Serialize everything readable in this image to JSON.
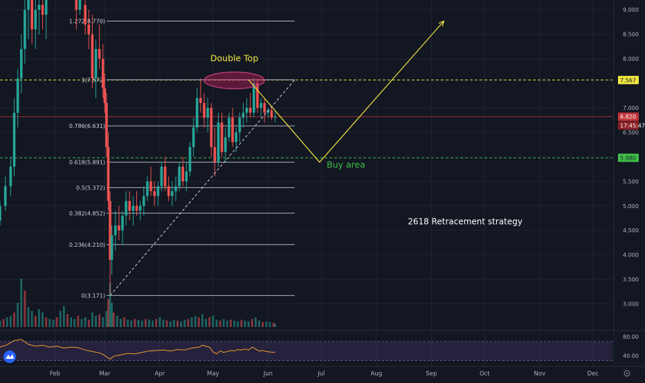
{
  "chart_data": {
    "type": "candlestick",
    "price_axis": {
      "ticks": [
        "9.000",
        "8.500",
        "8.000",
        "7.000",
        "6.500",
        "5.500",
        "5.000",
        "4.500",
        "4.000",
        "3.500",
        "3.000"
      ],
      "tick_values": [
        9.0,
        8.5,
        8.0,
        7.0,
        6.5,
        5.5,
        5.0,
        4.5,
        4.0,
        3.5,
        3.0
      ],
      "ylim": [
        2.5,
        9.2
      ]
    },
    "time_axis": {
      "ticks": [
        "Feb",
        "Mar",
        "Apr",
        "May",
        "Jun",
        "Jul",
        "Aug",
        "Sep",
        "Oct",
        "Nov",
        "Dec"
      ],
      "tick_days": [
        31,
        59,
        90,
        120,
        151,
        181,
        212,
        243,
        273,
        304,
        334
      ],
      "xlim_days": [
        0,
        345
      ]
    },
    "price_labels": [
      {
        "text": "7.567",
        "value": 7.567,
        "style": "yellow"
      },
      {
        "text": "6.820",
        "value": 6.82,
        "style": "red"
      },
      {
        "text": "17:45:47",
        "value": 6.64,
        "style": "red-dark"
      },
      {
        "text": "5.980",
        "value": 5.98,
        "style": "green"
      }
    ],
    "fib_levels": [
      {
        "label": "1.272(8.770)",
        "value": 8.77
      },
      {
        "label": "1(7.572)",
        "value": 7.572
      },
      {
        "label": "0.786(6.631)",
        "value": 6.631
      },
      {
        "label": "0.618(5.891)",
        "value": 5.891
      },
      {
        "label": "0.5(5.372)",
        "value": 5.372
      },
      {
        "label": "0.382(4.852)",
        "value": 4.852
      },
      {
        "label": "0.236(4.210)",
        "value": 4.21
      },
      {
        "label": "0(3.171)",
        "value": 3.171
      }
    ],
    "fib_x_days": [
      60,
      166
    ],
    "horizontal_lines": [
      {
        "value": 7.567,
        "color": "#f2e640",
        "style": "dashed"
      },
      {
        "value": 6.82,
        "color": "#c2363a",
        "style": "solid"
      },
      {
        "value": 5.98,
        "color": "#3fbf4a",
        "style": "dashed"
      }
    ],
    "trendline": {
      "from": [
        62,
        3.171
      ],
      "to": [
        166,
        7.572
      ]
    },
    "projection": [
      [
        140,
        7.572
      ],
      [
        180,
        5.89
      ],
      [
        250,
        8.77
      ]
    ],
    "ellipse": {
      "center": [
        132,
        7.56
      ],
      "rx_days": 17,
      "ry_price": 0.17
    },
    "candles": [
      [
        0,
        4.7,
        5.1,
        4.6,
        5.0
      ],
      [
        3,
        5.0,
        5.6,
        4.9,
        5.4
      ],
      [
        6,
        5.4,
        6.0,
        5.2,
        5.8
      ],
      [
        8,
        5.8,
        7.2,
        5.6,
        6.9
      ],
      [
        10,
        6.9,
        7.8,
        6.6,
        7.6
      ],
      [
        12,
        7.6,
        8.5,
        7.3,
        8.2
      ],
      [
        14,
        8.2,
        9.3,
        7.9,
        9.0
      ],
      [
        16,
        9.0,
        9.6,
        8.4,
        9.2
      ],
      [
        18,
        9.2,
        9.5,
        8.3,
        8.6
      ],
      [
        20,
        8.6,
        9.4,
        8.2,
        9.0
      ],
      [
        22,
        9.0,
        9.8,
        8.5,
        9.1
      ],
      [
        24,
        9.1,
        9.6,
        8.6,
        8.9
      ],
      [
        26,
        8.9,
        9.5,
        8.4,
        9.3
      ],
      [
        43,
        9.2,
        9.6,
        8.6,
        9.0
      ],
      [
        45,
        9.0,
        9.4,
        8.9,
        9.2
      ],
      [
        48,
        9.1,
        9.4,
        8.5,
        8.7
      ],
      [
        50,
        8.7,
        9.0,
        8.2,
        8.5
      ],
      [
        52,
        8.5,
        8.9,
        7.4,
        7.6
      ],
      [
        54,
        7.6,
        8.4,
        7.2,
        8.2
      ],
      [
        56,
        8.2,
        8.7,
        7.8,
        8.0
      ],
      [
        58,
        8.0,
        8.3,
        7.2,
        7.4
      ],
      [
        59,
        7.4,
        7.7,
        6.9,
        7.1
      ],
      [
        60,
        7.1,
        7.3,
        6.0,
        6.2
      ],
      [
        61,
        6.2,
        6.5,
        4.9,
        5.1
      ],
      [
        62,
        5.1,
        5.3,
        3.2,
        3.9
      ],
      [
        63,
        3.9,
        4.6,
        3.6,
        4.4
      ],
      [
        65,
        4.4,
        4.9,
        4.1,
        4.6
      ],
      [
        67,
        4.6,
        5.0,
        4.3,
        4.5
      ],
      [
        69,
        4.5,
        4.9,
        4.2,
        4.8
      ],
      [
        71,
        4.8,
        5.3,
        4.6,
        5.1
      ],
      [
        73,
        5.1,
        5.3,
        4.7,
        4.9
      ],
      [
        75,
        4.9,
        5.2,
        4.6,
        5.0
      ],
      [
        77,
        5.0,
        5.3,
        4.8,
        4.9
      ],
      [
        79,
        4.9,
        5.1,
        4.7,
        5.0
      ],
      [
        81,
        5.0,
        5.4,
        4.8,
        5.2
      ],
      [
        83,
        5.2,
        5.6,
        5.1,
        5.5
      ],
      [
        85,
        5.5,
        5.8,
        5.2,
        5.3
      ],
      [
        87,
        5.3,
        5.5,
        5.0,
        5.2
      ],
      [
        89,
        5.2,
        5.5,
        5.0,
        5.4
      ],
      [
        91,
        5.4,
        5.9,
        5.3,
        5.8
      ],
      [
        93,
        5.8,
        6.0,
        5.3,
        5.4
      ],
      [
        95,
        5.4,
        5.6,
        5.1,
        5.2
      ],
      [
        97,
        5.2,
        5.5,
        5.0,
        5.3
      ],
      [
        99,
        5.3,
        5.6,
        5.1,
        5.4
      ],
      [
        101,
        5.4,
        5.9,
        5.3,
        5.8
      ],
      [
        103,
        5.8,
        6.0,
        5.4,
        5.5
      ],
      [
        105,
        5.5,
        5.9,
        5.3,
        5.7
      ],
      [
        107,
        5.7,
        6.3,
        5.6,
        6.2
      ],
      [
        109,
        6.2,
        6.8,
        6.0,
        6.6
      ],
      [
        111,
        6.6,
        7.4,
        6.5,
        7.2
      ],
      [
        113,
        7.2,
        7.6,
        6.9,
        7.1
      ],
      [
        115,
        7.1,
        7.3,
        6.6,
        6.8
      ],
      [
        117,
        6.8,
        7.2,
        6.5,
        7.0
      ],
      [
        119,
        7.0,
        7.1,
        6.0,
        6.2
      ],
      [
        121,
        6.2,
        6.6,
        5.6,
        5.9
      ],
      [
        123,
        5.9,
        6.9,
        5.8,
        6.7
      ],
      [
        125,
        6.7,
        6.9,
        6.0,
        6.1
      ],
      [
        127,
        6.1,
        6.6,
        5.9,
        6.4
      ],
      [
        129,
        6.4,
        6.9,
        6.3,
        6.8
      ],
      [
        131,
        6.8,
        7.0,
        6.2,
        6.3
      ],
      [
        133,
        6.3,
        6.6,
        6.1,
        6.5
      ],
      [
        135,
        6.5,
        6.9,
        6.3,
        6.8
      ],
      [
        137,
        6.8,
        7.1,
        6.6,
        6.9
      ],
      [
        139,
        6.9,
        7.2,
        6.7,
        7.0
      ],
      [
        141,
        7.0,
        7.3,
        6.8,
        6.9
      ],
      [
        143,
        6.9,
        7.6,
        6.8,
        7.5
      ],
      [
        145,
        7.5,
        7.6,
        6.9,
        7.0
      ],
      [
        147,
        7.0,
        7.2,
        6.8,
        7.1
      ],
      [
        149,
        7.1,
        7.2,
        6.7,
        6.9
      ],
      [
        151,
        6.9,
        7.0,
        6.8,
        6.95
      ],
      [
        153,
        6.95,
        7.0,
        6.75,
        6.8
      ],
      [
        155,
        6.8,
        6.92,
        6.7,
        6.82
      ]
    ],
    "annotations": [
      {
        "text": "Double Top",
        "x_day": 132,
        "price": 7.95,
        "color": "#f2e640"
      },
      {
        "text": "Buy area",
        "x_day": 184,
        "price": 5.78,
        "color": "#3fbf4a"
      },
      {
        "text": "2618 Retracement strategy",
        "x_day": 262,
        "price": 4.62,
        "color": "#ffffff"
      }
    ],
    "volume": [
      [
        0,
        8
      ],
      [
        2,
        10
      ],
      [
        4,
        12
      ],
      [
        6,
        14
      ],
      [
        8,
        18
      ],
      [
        10,
        30
      ],
      [
        12,
        60
      ],
      [
        14,
        45
      ],
      [
        16,
        25
      ],
      [
        18,
        20
      ],
      [
        20,
        14
      ],
      [
        22,
        22
      ],
      [
        24,
        18
      ],
      [
        26,
        12
      ],
      [
        28,
        10
      ],
      [
        30,
        9
      ],
      [
        32,
        12
      ],
      [
        34,
        20
      ],
      [
        36,
        26
      ],
      [
        38,
        16
      ],
      [
        40,
        12
      ],
      [
        42,
        10
      ],
      [
        44,
        14
      ],
      [
        46,
        10
      ],
      [
        48,
        12
      ],
      [
        50,
        9
      ],
      [
        52,
        18
      ],
      [
        54,
        14
      ],
      [
        56,
        16
      ],
      [
        58,
        12
      ],
      [
        60,
        20
      ],
      [
        61,
        35
      ],
      [
        62,
        55
      ],
      [
        63,
        30
      ],
      [
        64,
        18
      ],
      [
        66,
        14
      ],
      [
        68,
        10
      ],
      [
        70,
        12
      ],
      [
        72,
        9
      ],
      [
        74,
        8
      ],
      [
        76,
        10
      ],
      [
        78,
        9
      ],
      [
        80,
        8
      ],
      [
        82,
        10
      ],
      [
        84,
        9
      ],
      [
        86,
        8
      ],
      [
        88,
        10
      ],
      [
        90,
        12
      ],
      [
        92,
        9
      ],
      [
        94,
        8
      ],
      [
        96,
        7
      ],
      [
        98,
        9
      ],
      [
        100,
        8
      ],
      [
        102,
        7
      ],
      [
        104,
        9
      ],
      [
        106,
        10
      ],
      [
        108,
        12
      ],
      [
        110,
        14
      ],
      [
        112,
        12
      ],
      [
        114,
        16
      ],
      [
        116,
        10
      ],
      [
        118,
        12
      ],
      [
        120,
        14
      ],
      [
        122,
        9
      ],
      [
        124,
        8
      ],
      [
        126,
        10
      ],
      [
        128,
        8
      ],
      [
        130,
        9
      ],
      [
        132,
        8
      ],
      [
        134,
        7
      ],
      [
        136,
        9
      ],
      [
        138,
        8
      ],
      [
        140,
        7
      ],
      [
        142,
        10
      ],
      [
        144,
        12
      ],
      [
        146,
        8
      ],
      [
        148,
        6
      ],
      [
        150,
        7
      ],
      [
        152,
        6
      ],
      [
        154,
        5
      ],
      [
        155,
        4
      ]
    ],
    "rsi": {
      "ticks": [
        "80.00",
        "40.00"
      ],
      "tick_values": [
        80,
        40
      ],
      "ylim": [
        25,
        90
      ],
      "band": [
        30,
        70
      ],
      "values": [
        [
          0,
          58
        ],
        [
          4,
          63
        ],
        [
          8,
          72
        ],
        [
          12,
          74
        ],
        [
          16,
          64
        ],
        [
          20,
          60
        ],
        [
          24,
          62
        ],
        [
          28,
          58
        ],
        [
          32,
          60
        ],
        [
          36,
          56
        ],
        [
          40,
          58
        ],
        [
          44,
          57
        ],
        [
          48,
          52
        ],
        [
          52,
          49
        ],
        [
          56,
          46
        ],
        [
          58,
          43
        ],
        [
          60,
          38
        ],
        [
          62,
          33
        ],
        [
          64,
          39
        ],
        [
          68,
          42
        ],
        [
          72,
          45
        ],
        [
          76,
          44
        ],
        [
          80,
          47
        ],
        [
          84,
          50
        ],
        [
          88,
          51
        ],
        [
          92,
          52
        ],
        [
          96,
          50
        ],
        [
          100,
          53
        ],
        [
          104,
          52
        ],
        [
          108,
          56
        ],
        [
          112,
          58
        ],
        [
          114,
          62
        ],
        [
          116,
          60
        ],
        [
          118,
          58
        ],
        [
          120,
          48
        ],
        [
          122,
          44
        ],
        [
          124,
          50
        ],
        [
          126,
          47
        ],
        [
          128,
          49
        ],
        [
          130,
          51
        ],
        [
          132,
          50
        ],
        [
          134,
          53
        ],
        [
          136,
          52
        ],
        [
          138,
          54
        ],
        [
          140,
          52
        ],
        [
          142,
          58
        ],
        [
          144,
          54
        ],
        [
          146,
          50
        ],
        [
          148,
          51
        ],
        [
          150,
          49
        ],
        [
          152,
          48
        ],
        [
          155,
          47
        ]
      ]
    }
  }
}
